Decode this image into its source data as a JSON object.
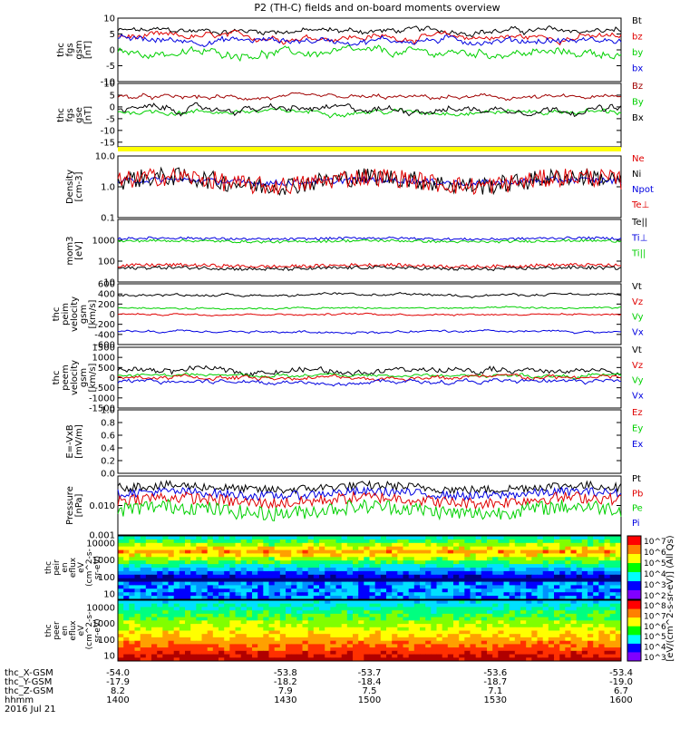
{
  "chart_data": {
    "type": "line",
    "title": "P2 (TH-C) fields and on-board moments overview",
    "colors": {
      "black": "#000000",
      "red": "#e00000",
      "green": "#00d000",
      "blue": "#0000e0",
      "darkred": "#a00000",
      "yellow": "#ffff00"
    },
    "panels": [
      {
        "id": "fgs",
        "ylabel": [
          "thc",
          "fgs",
          "gsm",
          "[nT]"
        ],
        "ylim": [
          -10,
          10
        ],
        "ticks": [
          "10",
          "5",
          "0",
          "-5",
          "-10"
        ],
        "legend": [
          [
            "Bt",
            "black"
          ],
          [
            "bz",
            "red"
          ],
          [
            "by",
            "green"
          ],
          [
            "bx",
            "blue"
          ]
        ],
        "series": [
          {
            "name": "Bt",
            "color": "black",
            "base": 6,
            "amp": 1.6
          },
          {
            "name": "bz",
            "color": "red",
            "base": 4,
            "amp": 1.8
          },
          {
            "name": "by",
            "color": "green",
            "base": -1,
            "amp": 2.2
          },
          {
            "name": "bx",
            "color": "blue",
            "base": 3,
            "amp": 1.8
          }
        ]
      },
      {
        "id": "fgs2",
        "ylabel": [
          "thc",
          "fgs",
          "gse",
          "[nT]"
        ],
        "ylim": [
          -17,
          10
        ],
        "ticks": [
          "10",
          "5",
          "0",
          "-5",
          "-10",
          "-15"
        ],
        "legend": [
          [
            "Bz",
            "darkred"
          ],
          [
            "By",
            "green"
          ],
          [
            "Bx",
            "black"
          ]
        ],
        "series": [
          {
            "name": "Bz",
            "color": "darkred",
            "base": 4,
            "amp": 1.6
          },
          {
            "name": "By",
            "color": "green",
            "base": -2,
            "amp": 1.8
          },
          {
            "name": "Bx",
            "color": "black",
            "base": -1,
            "amp": 2.5
          }
        ]
      },
      {
        "id": "density",
        "ylabel": [
          "Density",
          "[cm-3]"
        ],
        "log": true,
        "ylim": [
          0.1,
          10
        ],
        "ticks": [
          "10.0",
          "1.0",
          "0.1"
        ],
        "legend": [
          [
            "Ne",
            "red"
          ],
          [
            "Ni",
            "black"
          ],
          [
            "Npot",
            "blue"
          ],
          [
            "Te⊥",
            "red"
          ]
        ],
        "series": [
          {
            "name": "Npot",
            "color": "blue",
            "base": 1.5,
            "amp": 0.1
          },
          {
            "name": "Ni",
            "color": "black",
            "base": 1.5,
            "amp": 0.3
          },
          {
            "name": "Ne",
            "color": "red",
            "base": 1.5,
            "amp": 0.3
          }
        ]
      },
      {
        "id": "mom",
        "ylabel": [
          "mom3",
          "[eV]"
        ],
        "log": true,
        "ylim": [
          10,
          10000
        ],
        "ticks": [
          "1000",
          "100",
          "10"
        ],
        "legend": [
          [
            "Te||",
            "black"
          ],
          [
            "Ti⊥",
            "blue"
          ],
          [
            "Ti||",
            "green"
          ]
        ],
        "series": [
          {
            "name": "Ti⊥",
            "color": "blue",
            "base": 1200,
            "amp": 0.06
          },
          {
            "name": "Ti||",
            "color": "green",
            "base": 900,
            "amp": 0.06
          },
          {
            "name": "Te⊥",
            "color": "red",
            "base": 60,
            "amp": 0.08
          },
          {
            "name": "Te||",
            "color": "black",
            "base": 45,
            "amp": 0.08
          }
        ]
      },
      {
        "id": "peim",
        "ylabel": [
          "thc",
          "peim",
          "velocity",
          "gsm",
          "[km/s]"
        ],
        "ylim": [
          -600,
          600
        ],
        "ticks": [
          "600",
          "400",
          "200",
          "0",
          "-200",
          "-400",
          "-600"
        ],
        "legend": [
          [
            "Vt",
            "black"
          ],
          [
            "Vz",
            "red"
          ],
          [
            "Vy",
            "green"
          ],
          [
            "Vx",
            "blue"
          ]
        ],
        "series": [
          {
            "name": "Vt",
            "color": "black",
            "base": 380,
            "amp": 40
          },
          {
            "name": "Vz",
            "color": "red",
            "base": 0,
            "amp": 30
          },
          {
            "name": "Vy",
            "color": "green",
            "base": 120,
            "amp": 30
          },
          {
            "name": "Vx",
            "color": "blue",
            "base": -350,
            "amp": 40
          }
        ]
      },
      {
        "id": "peem",
        "ylabel": [
          "thc",
          "peem",
          "velocity",
          "gsm",
          "[km/s]"
        ],
        "ylim": [
          -1500,
          1500
        ],
        "ticks": [
          "1500",
          "1000",
          "500",
          "0",
          "-500",
          "-1000",
          "-1500"
        ],
        "legend": [
          [
            "Vt",
            "black"
          ],
          [
            "Vz",
            "red"
          ],
          [
            "Vy",
            "green"
          ],
          [
            "Vx",
            "blue"
          ]
        ],
        "series": [
          {
            "name": "Vt",
            "color": "black",
            "base": 350,
            "amp": 260
          },
          {
            "name": "Vy",
            "color": "green",
            "base": 100,
            "amp": 150
          },
          {
            "name": "Vz",
            "color": "red",
            "base": 0,
            "amp": 180
          },
          {
            "name": "Vx",
            "color": "blue",
            "base": -200,
            "amp": 180
          }
        ]
      },
      {
        "id": "efield",
        "ylabel": [
          "E=-VxB",
          "[mV/m]"
        ],
        "ylim": [
          0,
          1
        ],
        "ticks": [
          "1.0",
          "0.8",
          "0.6",
          "0.4",
          "0.2",
          "0.0"
        ],
        "legend": [
          [
            "Ez",
            "red"
          ],
          [
            "Ey",
            "green"
          ],
          [
            "Ex",
            "blue"
          ]
        ],
        "series": []
      },
      {
        "id": "pressure",
        "ylabel": [
          "Pressure",
          "[nPa]"
        ],
        "log": true,
        "ylim": [
          0.001,
          0.1
        ],
        "ticks": [
          "0.010",
          "0.001"
        ],
        "legend": [
          [
            "Pt",
            "black"
          ],
          [
            "Pb",
            "red"
          ],
          [
            "Pe",
            "green"
          ],
          [
            "Pi",
            "blue"
          ]
        ],
        "series": [
          {
            "name": "Pt",
            "color": "black",
            "base": 0.04,
            "amp": 0.15
          },
          {
            "name": "Pi",
            "color": "blue",
            "base": 0.025,
            "amp": 0.15
          },
          {
            "name": "Pb",
            "color": "red",
            "base": 0.015,
            "amp": 0.2
          },
          {
            "name": "Pe",
            "color": "green",
            "base": 0.007,
            "amp": 0.25
          }
        ]
      }
    ],
    "spectrograms": [
      {
        "id": "peir",
        "ylabel": [
          "thc",
          "peir",
          "en",
          "eflux",
          "eV",
          "(cm^2-s-",
          "sr-eV)"
        ],
        "ticks": [
          "10000",
          "1000",
          "100",
          "10"
        ],
        "colorbar": {
          "ticks": [
            "10^7",
            "10^6",
            "10^5",
            "10^4",
            "10^3",
            "10^2"
          ]
        }
      },
      {
        "id": "peer",
        "ylabel": [
          "thc",
          "peer",
          "en",
          "eflux",
          "eV",
          "(cm^2-s-",
          "sr-eV)"
        ],
        "ticks": [
          "10000",
          "1000",
          "100",
          "10"
        ],
        "colorbar": {
          "ticks": [
            "10^8",
            "10^7",
            "10^6",
            "10^5",
            "10^4",
            "10^3"
          ]
        }
      }
    ],
    "colorbar_label": "[eV/(cm^2-s-sr-eV)] (All Qs)",
    "x_axis": {
      "rows": [
        {
          "label": "thc_X-GSM",
          "values": [
            "-54.0",
            "-53.8",
            "-53.7",
            "-53.6",
            "-53.4"
          ]
        },
        {
          "label": "thc_Y-GSM",
          "values": [
            "-17.9",
            "-18.2",
            "-18.4",
            "-18.7",
            "-19.0"
          ]
        },
        {
          "label": "thc_Z-GSM",
          "values": [
            "8.2",
            "7.9",
            "7.5",
            "7.1",
            "6.7"
          ]
        },
        {
          "label": "hhmm",
          "values": [
            "1400",
            "1430",
            "1500",
            "1530",
            "1600"
          ]
        }
      ],
      "date": "2016 Jul 21"
    }
  }
}
